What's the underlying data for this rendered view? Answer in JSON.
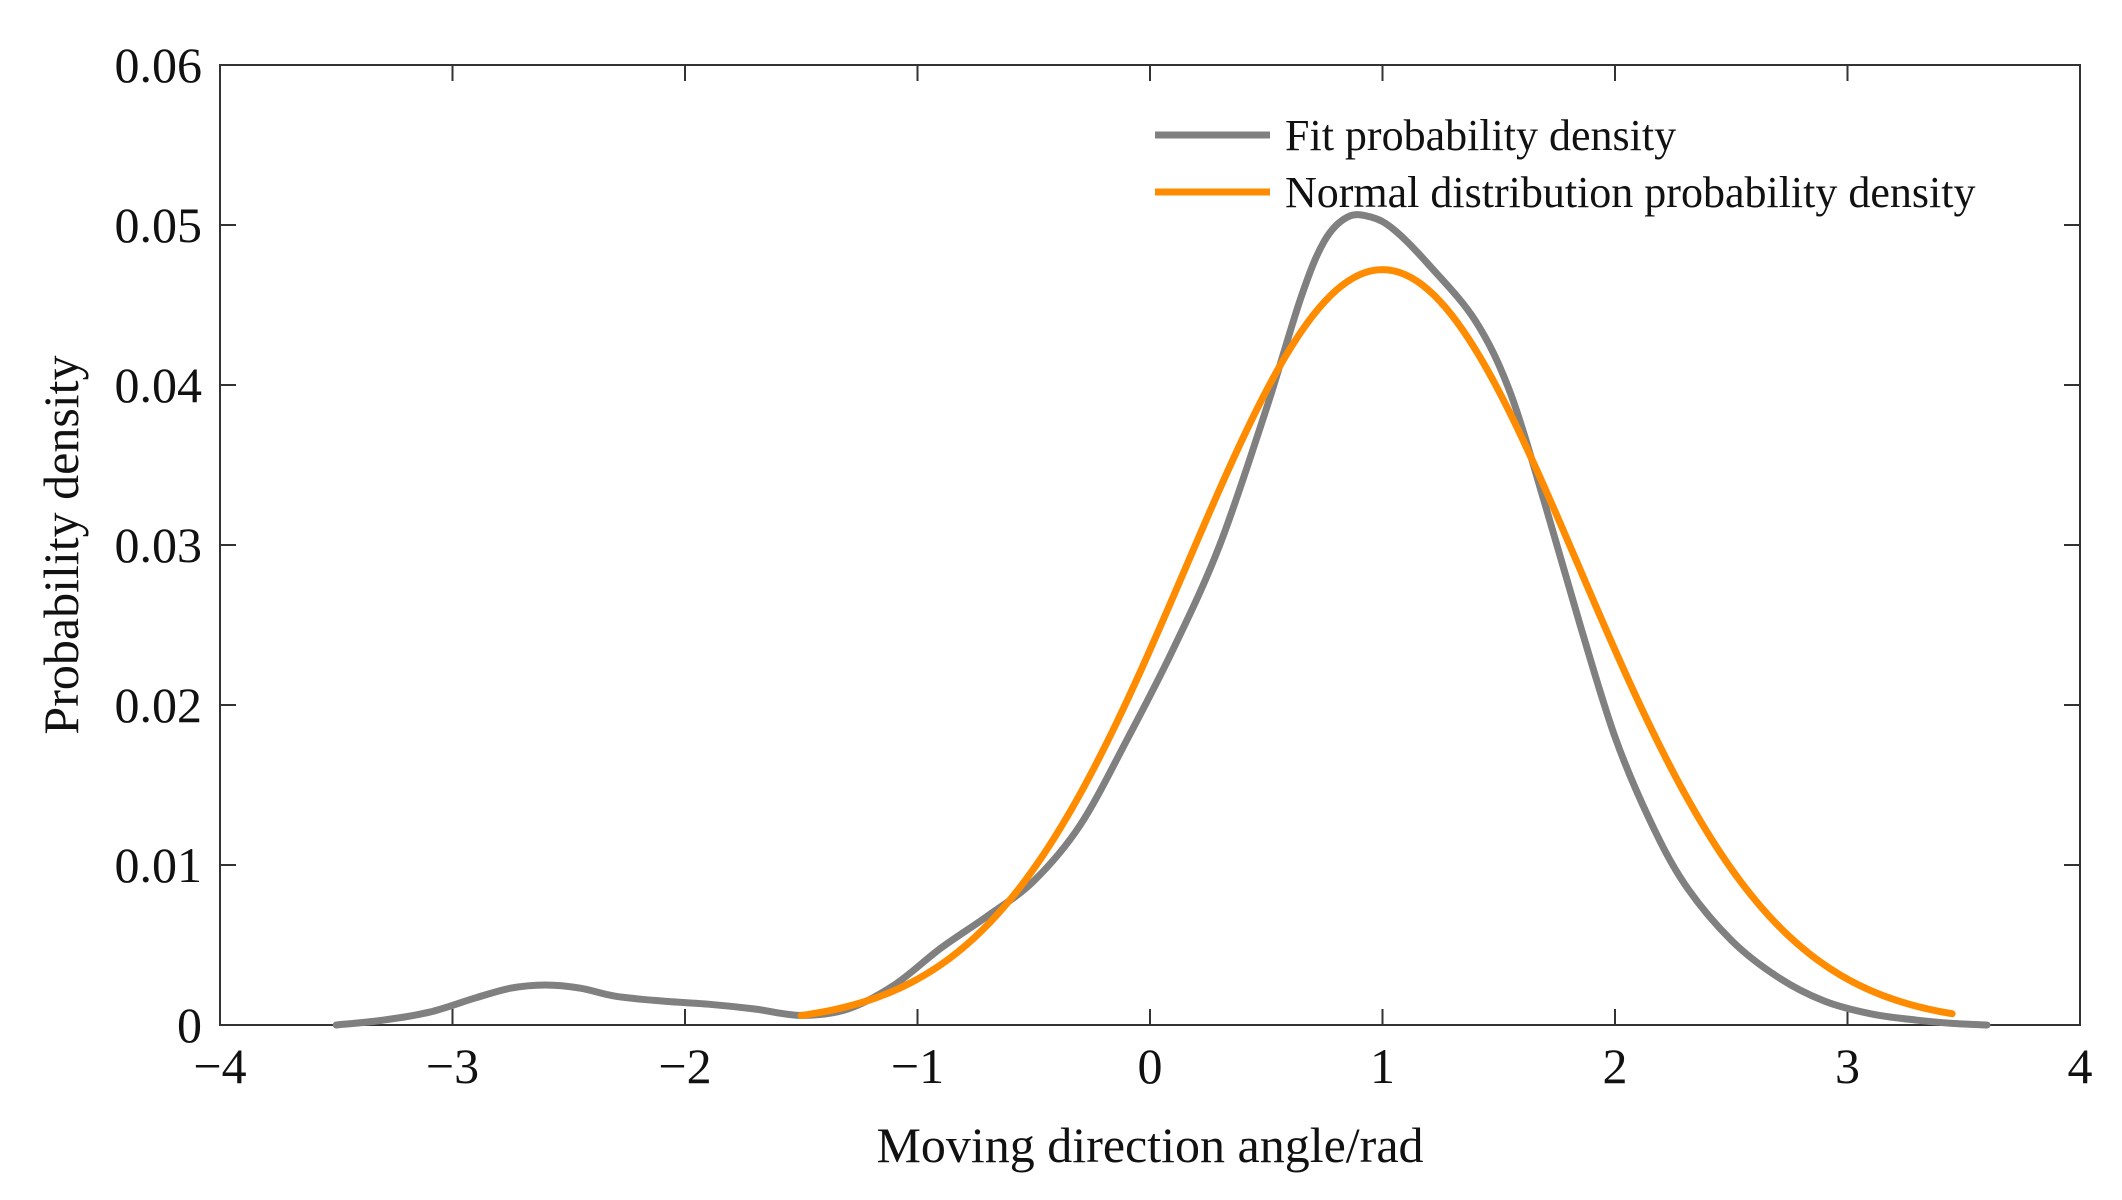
{
  "chart_data": {
    "type": "line",
    "title": "",
    "xlabel": "Moving direction angle/rad",
    "ylabel": "Probability density",
    "xlim": [
      -4,
      4
    ],
    "ylim": [
      0,
      0.06
    ],
    "grid": false,
    "legend_position": "top-right",
    "x_ticks": [
      -4,
      -3,
      -2,
      -1,
      0,
      1,
      2,
      3,
      4
    ],
    "x_tick_labels": [
      "−4",
      "−3",
      "−2",
      "−1",
      "0",
      "1",
      "2",
      "3",
      "4"
    ],
    "y_ticks": [
      0,
      0.01,
      0.02,
      0.03,
      0.04,
      0.05,
      0.06
    ],
    "y_tick_labels": [
      "0",
      "0.01",
      "0.02",
      "0.03",
      "0.04",
      "0.05",
      "0.06"
    ],
    "series": [
      {
        "name": "Fit probability density",
        "color": "#808080",
        "x": [
          -3.5,
          -3.3,
          -3.1,
          -2.9,
          -2.75,
          -2.6,
          -2.45,
          -2.3,
          -2.1,
          -1.9,
          -1.7,
          -1.5,
          -1.3,
          -1.1,
          -0.9,
          -0.7,
          -0.5,
          -0.3,
          -0.1,
          0.1,
          0.3,
          0.5,
          0.65,
          0.75,
          0.85,
          0.95,
          1.05,
          1.2,
          1.4,
          1.55,
          1.7,
          1.85,
          2.0,
          2.15,
          2.3,
          2.5,
          2.7,
          2.9,
          3.1,
          3.3,
          3.45,
          3.6
        ],
        "y": [
          0.0,
          0.0003,
          0.0008,
          0.0017,
          0.0023,
          0.0025,
          0.0023,
          0.0018,
          0.0015,
          0.0013,
          0.001,
          0.0006,
          0.001,
          0.0025,
          0.0048,
          0.0068,
          0.009,
          0.0125,
          0.0178,
          0.0235,
          0.03,
          0.0385,
          0.0455,
          0.049,
          0.0505,
          0.0505,
          0.0497,
          0.0475,
          0.044,
          0.0395,
          0.0325,
          0.025,
          0.018,
          0.0128,
          0.0088,
          0.0053,
          0.003,
          0.0015,
          0.0007,
          0.0003,
          0.0001,
          0.0
        ]
      },
      {
        "name": "Normal distribution probability density",
        "color": "#ff8c00",
        "mu": 1.0,
        "sigma": 0.845,
        "x_range": [
          -1.5,
          3.45
        ]
      }
    ]
  }
}
